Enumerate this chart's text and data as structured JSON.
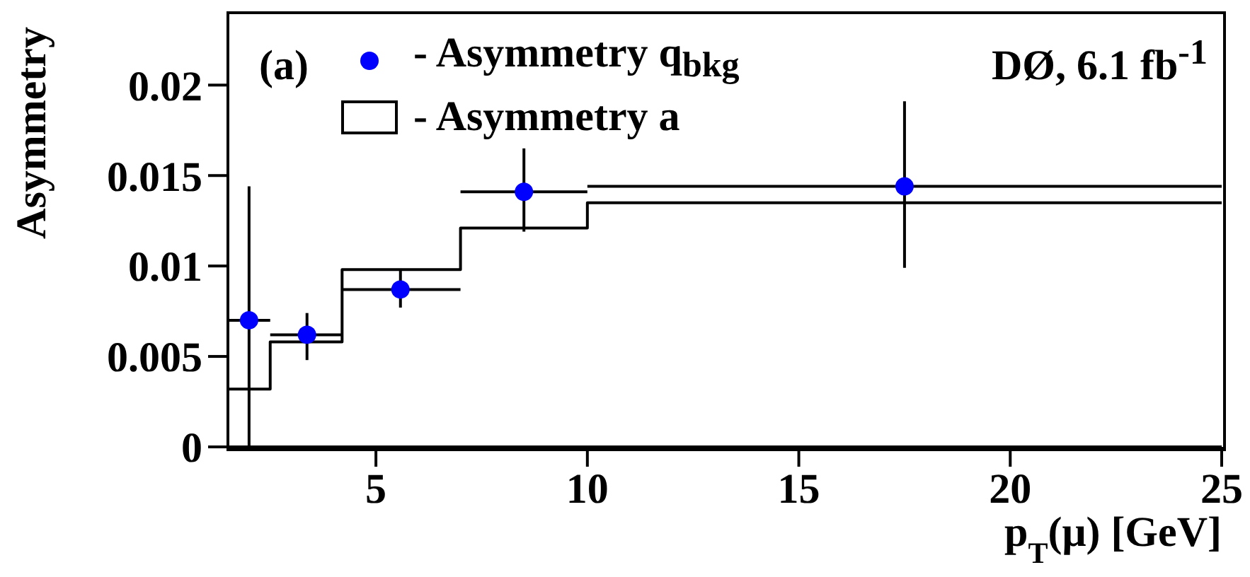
{
  "chart_data": {
    "type": "scatter",
    "xlabel": "p$_{T}$(μ) [GeV]",
    "ylabel": "Asymmetry",
    "annotations": [
      "(a)",
      "DØ, 6.1 fb$^{-1}$"
    ],
    "xlim": [
      1.5,
      25
    ],
    "xticks": [
      5,
      10,
      15,
      20,
      25
    ],
    "ylim": [
      0,
      0.024
    ],
    "yticks": [
      0,
      0.005,
      0.01,
      0.015,
      0.02
    ],
    "grid": false,
    "legend": "top left",
    "marker": "circle",
    "series": [
      {
        "name": "- Asymmetry q$_{bkg}$",
        "color": "#0000ff",
        "x": [
          2.0,
          3.37,
          5.58,
          8.5,
          17.5
        ],
        "values": [
          0.007,
          0.0062,
          0.0087,
          0.0141,
          0.0144
        ],
        "errors": [
          [
            0,
            0.0144
          ],
          [
            0.0048,
            0.0074
          ],
          [
            0.0077,
            0.0098
          ],
          [
            0.0119,
            0.0165
          ],
          [
            0.0099,
            0.0191
          ]
        ],
        "xerrors": [
          [
            1.5,
            2.5
          ],
          [
            2.5,
            4.2
          ],
          [
            4.2,
            7
          ],
          [
            7,
            10
          ],
          [
            10,
            25
          ]
        ]
      },
      {
        "name": "- Asymmetry a",
        "type": "histogram",
        "color": "#000000",
        "bins": [
          1.5,
          2.5,
          4.2,
          7,
          10,
          25
        ],
        "values": [
          0.0032,
          0.0058,
          0.0098,
          0.0121,
          0.0135
        ]
      }
    ]
  }
}
